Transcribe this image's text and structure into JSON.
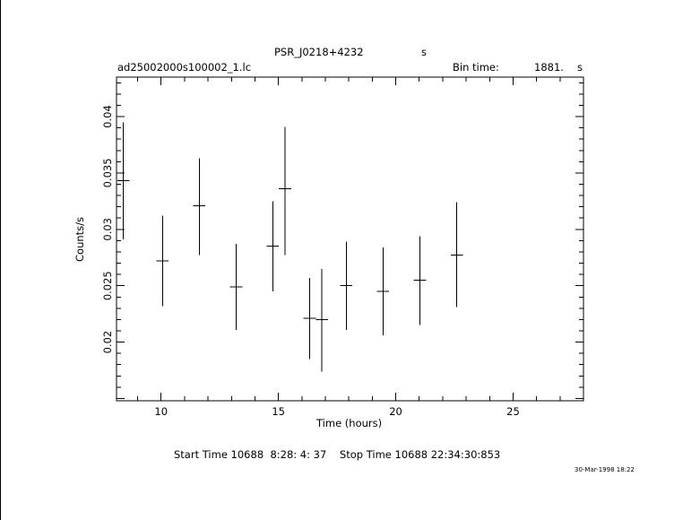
{
  "header": {
    "title": "PSR_J0218+4232",
    "title_unit": "s",
    "filename": "ad25002000s100002_1.lc",
    "bin_label": "Bin time:",
    "bin_value": "1881.",
    "bin_unit": "s"
  },
  "footer": {
    "start_stop": "Start Time 10688  8:28: 4: 37    Stop Time 10688 22:34:30:853",
    "date_stamp": "30-Mar-1998 18:22"
  },
  "chart_data": {
    "type": "scatter",
    "xlabel": "Time (hours)",
    "ylabel": "Counts/s",
    "xlim": [
      8.1,
      28.0
    ],
    "ylim": [
      0.0148,
      0.0435
    ],
    "x_ticks": [
      "10",
      "15",
      "20",
      "25"
    ],
    "y_ticks": [
      "0.02",
      "0.025",
      "0.03",
      "0.035",
      "0.04"
    ],
    "points": [
      {
        "x": 8.39,
        "y": 0.0343,
        "xerr": 0.26,
        "ylow": 0.0291,
        "yhigh": 0.0395
      },
      {
        "x": 10.06,
        "y": 0.0272,
        "xerr": 0.26,
        "ylow": 0.0232,
        "yhigh": 0.0312
      },
      {
        "x": 11.63,
        "y": 0.0321,
        "xerr": 0.26,
        "ylow": 0.0277,
        "yhigh": 0.0363
      },
      {
        "x": 13.2,
        "y": 0.0249,
        "xerr": 0.26,
        "ylow": 0.0211,
        "yhigh": 0.0287
      },
      {
        "x": 14.76,
        "y": 0.0285,
        "xerr": 0.26,
        "ylow": 0.0245,
        "yhigh": 0.0325
      },
      {
        "x": 15.28,
        "y": 0.0336,
        "xerr": 0.26,
        "ylow": 0.0277,
        "yhigh": 0.0391
      },
      {
        "x": 16.33,
        "y": 0.0221,
        "xerr": 0.26,
        "ylow": 0.0185,
        "yhigh": 0.0257
      },
      {
        "x": 16.85,
        "y": 0.022,
        "xerr": 0.26,
        "ylow": 0.0174,
        "yhigh": 0.0265
      },
      {
        "x": 17.89,
        "y": 0.025,
        "xerr": 0.26,
        "ylow": 0.0211,
        "yhigh": 0.0289
      },
      {
        "x": 19.46,
        "y": 0.0245,
        "xerr": 0.26,
        "ylow": 0.0206,
        "yhigh": 0.0284
      },
      {
        "x": 21.03,
        "y": 0.0255,
        "xerr": 0.26,
        "ylow": 0.0215,
        "yhigh": 0.0294
      },
      {
        "x": 22.6,
        "y": 0.0277,
        "xerr": 0.26,
        "ylow": 0.0231,
        "yhigh": 0.0324
      }
    ],
    "grid": false,
    "legend": "none"
  }
}
